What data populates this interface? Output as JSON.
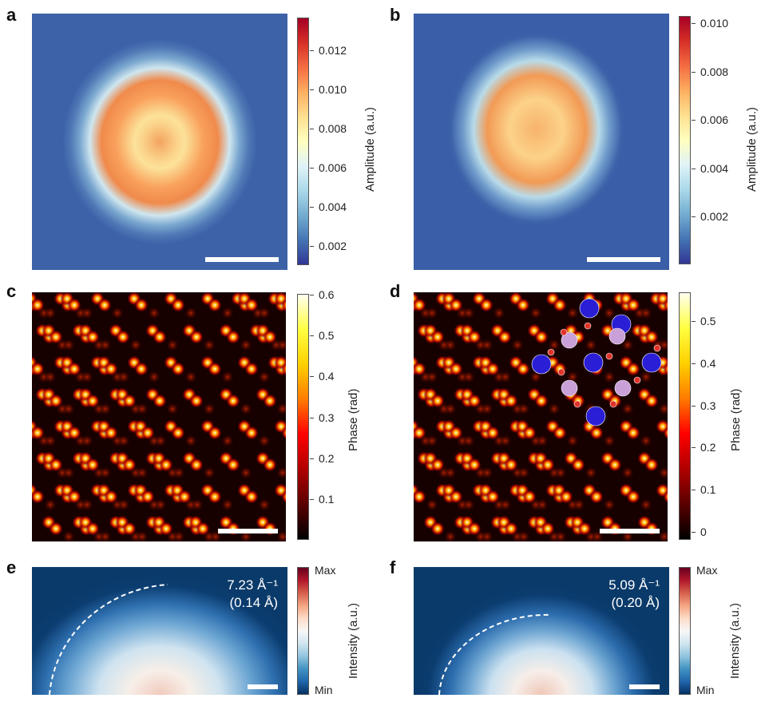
{
  "panels": [
    {
      "label": "a",
      "image": "amplitude-map",
      "colormap": "RdYlBu_r",
      "colorbar": {
        "title": "Amplitude (a.u.)",
        "range": [
          0.001,
          0.0137
        ],
        "ticks": [
          "0.002",
          "0.004",
          "0.006",
          "0.008",
          "0.010",
          "0.012"
        ]
      }
    },
    {
      "label": "b",
      "image": "amplitude-map",
      "colormap": "RdYlBu_r",
      "colorbar": {
        "title": "Amplitude (a.u.)",
        "range": [
          3e-05,
          0.0103
        ],
        "ticks": [
          "0.002",
          "0.004",
          "0.006",
          "0.008",
          "0.010"
        ]
      }
    },
    {
      "label": "c",
      "image": "phase-map",
      "colormap": "hot",
      "colorbar": {
        "title": "Phase (rad)",
        "range": [
          0.0,
          0.602
        ],
        "ticks": [
          "0.1",
          "0.2",
          "0.3",
          "0.4",
          "0.5",
          "0.6"
        ]
      }
    },
    {
      "label": "d",
      "image": "phase-map-with-atom-model",
      "colormap": "hot",
      "colorbar": {
        "title": "Phase (rad)",
        "range": [
          -0.019,
          0.568
        ],
        "ticks": [
          "0",
          "0.1",
          "0.2",
          "0.3",
          "0.4",
          "0.5"
        ]
      }
    },
    {
      "label": "e",
      "image": "diffraction-pattern",
      "colormap": "RdBu_r",
      "colorbar": {
        "title": "Intensity (a.u.)",
        "max_label": "Max",
        "min_label": "Min"
      },
      "annotation": {
        "line1": "7.23 Å⁻¹",
        "line2": "(0.14 Å)"
      }
    },
    {
      "label": "f",
      "image": "diffraction-pattern",
      "colormap": "RdBu_r",
      "colorbar": {
        "title": "Intensity (a.u.)",
        "max_label": "Max",
        "min_label": "Min"
      },
      "annotation": {
        "line1": "5.09 Å⁻¹",
        "line2": "(0.20 Å)"
      }
    }
  ],
  "colors": {
    "scale_bar": "#ffffff",
    "heavy_atom": "#2a1fd6",
    "light_atom": "#c9a0d8",
    "small_atom": "#e0342a"
  }
}
